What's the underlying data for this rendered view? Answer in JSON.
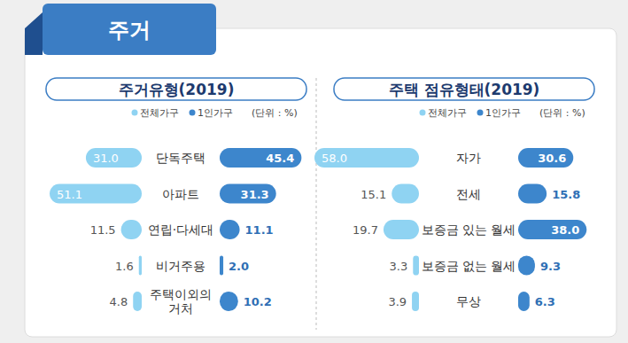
{
  "header": {
    "title": "주거"
  },
  "chart_data": [
    {
      "type": "bar",
      "orientation": "horizontal",
      "title": "주거유형(2019)",
      "subtitle": "(단위 : %)",
      "categories": [
        "단독주택",
        "아파트",
        "연립·다세대",
        "비거주용",
        "주택이외의\n거처"
      ],
      "series": [
        {
          "name": "전체가구",
          "color": "#8fd3f2",
          "values": [
            31.0,
            51.1,
            11.5,
            1.6,
            4.8
          ],
          "value_labels": [
            "31.0",
            "51.1",
            "11.5",
            "1.6",
            "4.8"
          ]
        },
        {
          "name": "1인가구",
          "color": "#3d86cc",
          "values": [
            45.4,
            31.3,
            11.1,
            2.0,
            10.2
          ],
          "value_labels": [
            "45.4",
            "31.3",
            "11.1",
            "2.0",
            "10.2"
          ]
        }
      ],
      "data_labels": true,
      "legend": "top",
      "tick_labels": false
    },
    {
      "type": "bar",
      "orientation": "horizontal",
      "title": "주택 점유형태(2019)",
      "subtitle": "(단위 : %)",
      "categories": [
        "자가",
        "전세",
        "보증금 있는 월세",
        "보증금 없는 월세",
        "무상"
      ],
      "series": [
        {
          "name": "전체가구",
          "color": "#8fd3f2",
          "values": [
            58.0,
            15.1,
            19.7,
            3.3,
            3.9
          ],
          "value_labels": [
            "58.0",
            "15.1",
            "19.7",
            "3.3",
            "3.9"
          ]
        },
        {
          "name": "1인가구",
          "color": "#3d86cc",
          "values": [
            30.6,
            15.8,
            38.0,
            9.3,
            6.3
          ],
          "value_labels": [
            "30.6",
            "15.8",
            "38.0",
            "9.3",
            "6.3"
          ]
        }
      ],
      "data_labels": true,
      "legend": "top",
      "tick_labels": false
    }
  ]
}
